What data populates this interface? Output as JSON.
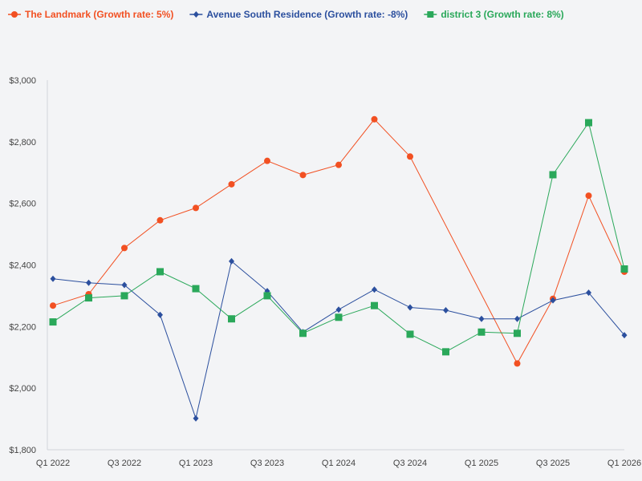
{
  "chart_data": {
    "type": "line",
    "title": "",
    "xlabel": "",
    "ylabel": "",
    "ylim": [
      1800,
      3000
    ],
    "yticks": [
      1800,
      2000,
      2200,
      2400,
      2600,
      2800,
      3000
    ],
    "ytick_labels": [
      "$1,800",
      "$2,000",
      "$2,200",
      "$2,400",
      "$2,600",
      "$2,800",
      "$3,000"
    ],
    "categories": [
      "Q1 2022",
      "Q2 2022",
      "Q3 2022",
      "Q4 2022",
      "Q1 2023",
      "Q2 2023",
      "Q3 2023",
      "Q4 2023",
      "Q1 2024",
      "Q2 2024",
      "Q3 2024",
      "Q4 2024",
      "Q1 2025",
      "Q2 2025",
      "Q3 2025",
      "Q4 2025",
      "Q1 2026"
    ],
    "xtick_labels": [
      "Q1 2022",
      "",
      "Q3 2022",
      "",
      "Q1 2023",
      "",
      "Q3 2023",
      "",
      "Q1 2024",
      "",
      "Q3 2024",
      "",
      "Q1 2025",
      "",
      "Q3 2025",
      "",
      "Q1 2026"
    ],
    "legend_position": "top-left",
    "series": [
      {
        "name": "The Landmark (Growth rate: 5%)",
        "color": "#f25022",
        "marker": "circle",
        "values": [
          2268,
          2305,
          2455,
          2545,
          2585,
          2662,
          2738,
          2692,
          2725,
          2873,
          2752,
          null,
          null,
          2080,
          2290,
          2625,
          2378
        ]
      },
      {
        "name": "Avenue South Residence (Growth rate: -8%)",
        "color": "#2b4f9e",
        "marker": "diamond",
        "values": [
          2355,
          2342,
          2335,
          2238,
          1902,
          2412,
          2315,
          2182,
          2255,
          2320,
          2262,
          2253,
          2225,
          2225,
          2285,
          2310,
          2172
        ]
      },
      {
        "name": "district 3 (Growth rate: 8%)",
        "color": "#2aa85a",
        "marker": "square",
        "values": [
          2215,
          2293,
          2300,
          2378,
          2323,
          2225,
          2300,
          2178,
          2230,
          2268,
          2175,
          2118,
          2182,
          2178,
          2693,
          2862,
          2387
        ]
      }
    ]
  }
}
